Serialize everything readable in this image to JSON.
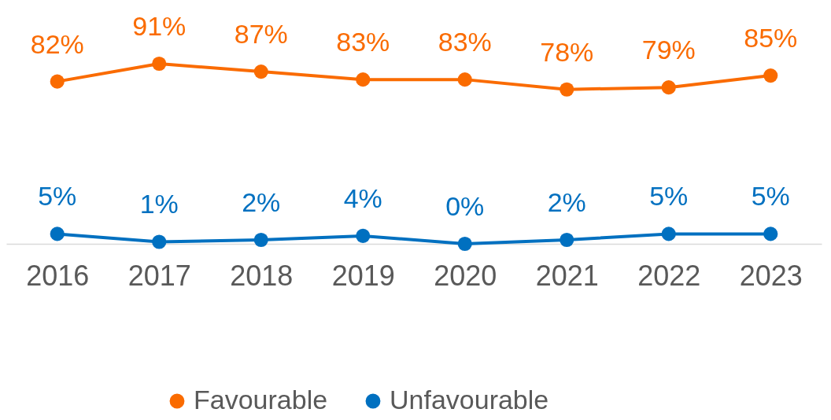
{
  "chart_data": {
    "type": "line",
    "categories": [
      "2016",
      "2017",
      "2018",
      "2019",
      "2020",
      "2021",
      "2022",
      "2023"
    ],
    "series": [
      {
        "name": "Favourable",
        "color": "#fa6b00",
        "values": [
          82,
          91,
          87,
          83,
          83,
          78,
          79,
          85
        ],
        "value_labels": [
          "82%",
          "91%",
          "87%",
          "83%",
          "83%",
          "78%",
          "79%",
          "85%"
        ]
      },
      {
        "name": "Unfavourable",
        "color": "#0070c0",
        "values": [
          5,
          1,
          2,
          4,
          0,
          2,
          5,
          5
        ],
        "value_labels": [
          "5%",
          "1%",
          "2%",
          "4%",
          "0%",
          "2%",
          "5%",
          "5%"
        ]
      }
    ],
    "tick_labels": "x",
    "grid": false,
    "legend": "bottom",
    "marker": "circle",
    "line_style": "solid"
  }
}
